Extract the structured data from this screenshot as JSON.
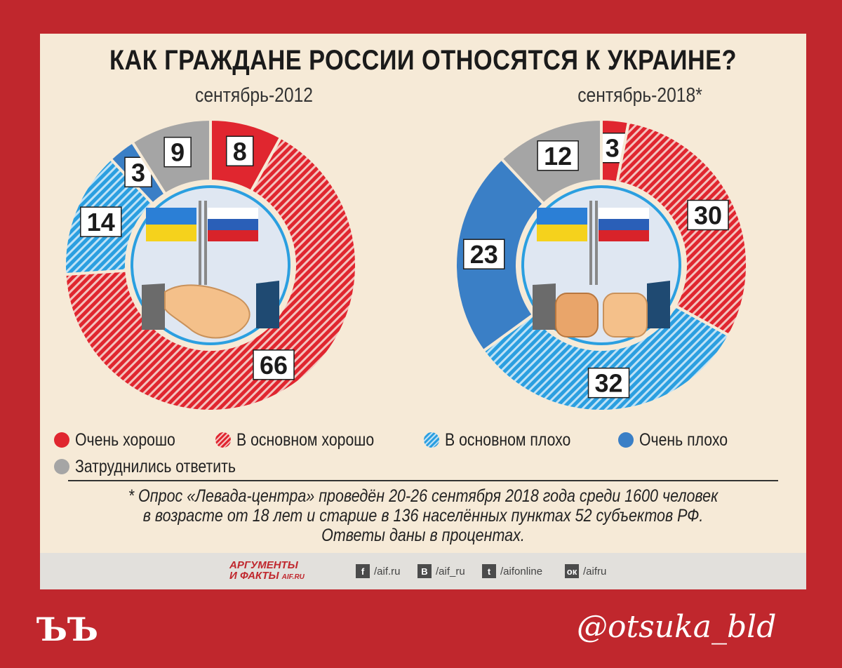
{
  "title": "КАК ГРАЖДАНЕ РОССИИ ОТНОСЯТСЯ К УКРАИНЕ?",
  "chart_data": [
    {
      "type": "pie",
      "subtitle": "сентябрь-2012",
      "categories": [
        "Очень хорошо",
        "В основном хорошо",
        "В основном плохо",
        "Очень плохо",
        "Затруднились ответить"
      ],
      "values": [
        8,
        66,
        14,
        3,
        9
      ]
    },
    {
      "type": "pie",
      "subtitle": "сентябрь-2018*",
      "categories": [
        "Очень хорошо",
        "В основном хорошо",
        "В основном плохо",
        "Очень плохо",
        "Затруднились ответить"
      ],
      "values": [
        3,
        30,
        32,
        23,
        12
      ]
    }
  ],
  "legend": [
    {
      "label": "Очень хорошо",
      "color": "#e0262f",
      "pattern": "solid"
    },
    {
      "label": "В основном хорошо",
      "color": "#e0262f",
      "pattern": "hatched"
    },
    {
      "label": "В основном плохо",
      "color": "#2b9fe0",
      "pattern": "hatched"
    },
    {
      "label": "Очень плохо",
      "color": "#3a7fc6",
      "pattern": "solid"
    },
    {
      "label": "Затруднились ответить",
      "color": "#a5a5a5",
      "pattern": "solid"
    }
  ],
  "footnote": {
    "line1": "* Опрос «Левада-центра» проведён 20-26 сентября 2018 года среди 1600 человек",
    "line2": "в возрасте от 18 лет и старше в 136 населённых пунктах 52 субъектов РФ.",
    "line3": "Ответы даны в процентах."
  },
  "footer": {
    "brand_line1": "АРГУМЕНТЫ",
    "brand_line2": "И ФАКТЫ",
    "brand_site": "AIF.RU",
    "social": [
      {
        "icon": "facebook-icon",
        "glyph": "f",
        "label": "/aif.ru"
      },
      {
        "icon": "vk-icon",
        "glyph": "B",
        "label": "/aif_ru"
      },
      {
        "icon": "twitter-icon",
        "glyph": "t",
        "label": "/aifonline"
      },
      {
        "icon": "odnoklassniki-icon",
        "glyph": "ок",
        "label": "/aifru"
      }
    ]
  },
  "watermark_left": "ЪЪ",
  "watermark_right": "@otsuka_bld"
}
